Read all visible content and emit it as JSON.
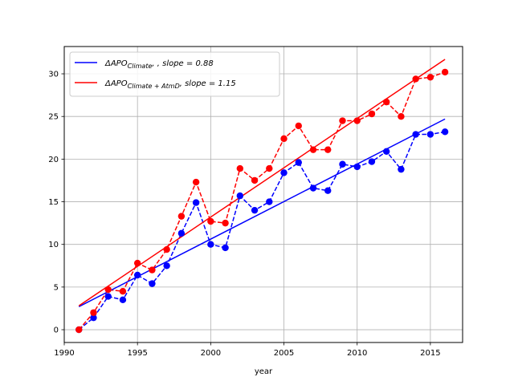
{
  "chart_data": {
    "type": "line",
    "xlabel": "year",
    "ylabel": "",
    "xlim": [
      1990,
      2017.2
    ],
    "ylim": [
      -1.5,
      33.2
    ],
    "xticks": [
      1990,
      1995,
      2000,
      2005,
      2010,
      2015
    ],
    "yticks": [
      0,
      5,
      10,
      15,
      20,
      25,
      30
    ],
    "grid": true,
    "legend_position": "top-left",
    "x": [
      1991,
      1992,
      1993,
      1994,
      1995,
      1996,
      1997,
      1998,
      1999,
      2000,
      2001,
      2002,
      2003,
      2004,
      2005,
      2006,
      2007,
      2008,
      2009,
      2010,
      2011,
      2012,
      2013,
      2014,
      2015,
      2016
    ],
    "series": [
      {
        "id": "climate",
        "color": "#0000ff",
        "style": "dashed-markers",
        "values": [
          0.0,
          1.4,
          3.9,
          3.5,
          6.4,
          5.4,
          7.5,
          11.3,
          14.9,
          10.0,
          9.6,
          15.7,
          14.0,
          15.0,
          18.4,
          19.6,
          16.6,
          16.3,
          19.4,
          19.1,
          19.7,
          20.9,
          18.8,
          22.9,
          22.9,
          23.2
        ]
      },
      {
        "id": "climate_atmd",
        "color": "#ff0000",
        "style": "dashed-markers",
        "values": [
          0.0,
          2.0,
          4.7,
          4.5,
          7.8,
          7.0,
          9.4,
          13.3,
          17.3,
          12.7,
          12.5,
          18.9,
          17.5,
          18.9,
          22.4,
          23.9,
          21.1,
          21.1,
          24.5,
          24.5,
          25.3,
          26.7,
          25.0,
          29.4,
          29.6,
          30.2
        ]
      },
      {
        "id": "climate_fit",
        "color": "#0000ff",
        "style": "solid",
        "x_range": [
          1991,
          2016
        ],
        "y_range": [
          2.7,
          24.7
        ]
      },
      {
        "id": "climate_atmd_fit",
        "color": "#ff0000",
        "style": "solid",
        "x_range": [
          1991,
          2016
        ],
        "y_range": [
          2.8,
          31.7
        ]
      }
    ],
    "legend": [
      {
        "color": "#0000ff",
        "base": "ΔAPO",
        "sub": "Climate",
        "tail": ", , slope = 0.88"
      },
      {
        "color": "#ff0000",
        "base": "ΔAPO",
        "sub": "Climate + AtmD",
        "tail": ", slope = 1.15"
      }
    ]
  }
}
